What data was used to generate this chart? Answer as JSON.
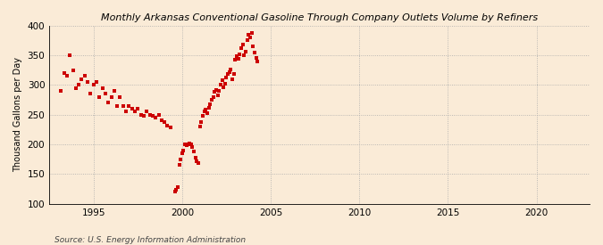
{
  "title": "Monthly Arkansas Conventional Gasoline Through Company Outlets Volume by Refiners",
  "ylabel": "Thousand Gallons per Day",
  "source": "Source: U.S. Energy Information Administration",
  "background_color": "#faebd7",
  "marker_color": "#cc0000",
  "xlim": [
    1992.5,
    2023
  ],
  "ylim": [
    100,
    400
  ],
  "yticks": [
    100,
    150,
    200,
    250,
    300,
    350,
    400
  ],
  "xticks": [
    1995,
    2000,
    2005,
    2010,
    2015,
    2020
  ],
  "data_x": [
    1993.17,
    1993.33,
    1993.5,
    1993.67,
    1993.83,
    1994.0,
    1994.17,
    1994.33,
    1994.5,
    1994.67,
    1994.83,
    1995.0,
    1995.17,
    1995.33,
    1995.5,
    1995.67,
    1995.83,
    1996.0,
    1996.17,
    1996.33,
    1996.5,
    1996.67,
    1996.83,
    1997.0,
    1997.17,
    1997.33,
    1997.5,
    1997.67,
    1997.83,
    1998.0,
    1998.17,
    1998.33,
    1998.5,
    1998.67,
    1998.83,
    1999.0,
    1999.17,
    1999.33,
    1999.58,
    1999.67,
    1999.75,
    1999.83,
    1999.92,
    2000.0,
    2000.08,
    2000.17,
    2000.25,
    2000.33,
    2000.42,
    2000.5,
    2000.58,
    2000.67,
    2000.75,
    2000.83,
    2000.92,
    2001.0,
    2001.08,
    2001.17,
    2001.25,
    2001.33,
    2001.42,
    2001.5,
    2001.58,
    2001.67,
    2001.75,
    2001.83,
    2001.92,
    2002.0,
    2002.08,
    2002.17,
    2002.25,
    2002.33,
    2002.42,
    2002.5,
    2002.58,
    2002.67,
    2002.75,
    2002.83,
    2002.92,
    2003.0,
    2003.08,
    2003.17,
    2003.25,
    2003.33,
    2003.42,
    2003.5,
    2003.58,
    2003.67,
    2003.75,
    2003.83,
    2003.92,
    2004.0,
    2004.08,
    2004.17,
    2004.25
  ],
  "data_y": [
    290,
    320,
    315,
    350,
    325,
    295,
    300,
    310,
    315,
    305,
    285,
    300,
    305,
    280,
    295,
    285,
    270,
    280,
    290,
    265,
    280,
    265,
    255,
    265,
    260,
    255,
    260,
    250,
    248,
    255,
    250,
    248,
    245,
    250,
    240,
    238,
    232,
    228,
    120,
    124,
    128,
    165,
    175,
    185,
    190,
    200,
    198,
    200,
    202,
    200,
    196,
    188,
    178,
    172,
    168,
    230,
    238,
    248,
    255,
    258,
    252,
    262,
    268,
    275,
    280,
    288,
    292,
    282,
    290,
    300,
    308,
    296,
    302,
    312,
    318,
    322,
    326,
    310,
    318,
    342,
    348,
    344,
    352,
    362,
    368,
    350,
    356,
    375,
    385,
    380,
    388,
    365,
    355,
    345,
    340
  ]
}
